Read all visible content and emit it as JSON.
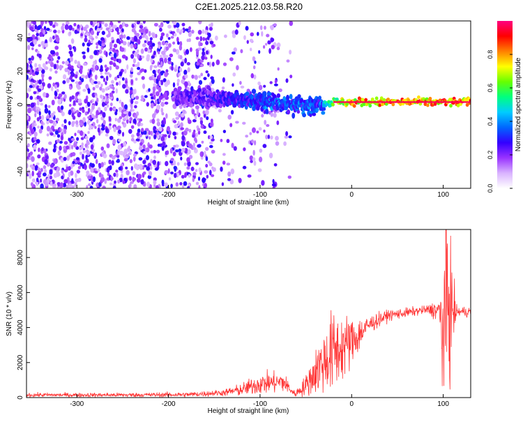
{
  "page": {
    "title": "C2E1.2025.212.03.58.R20"
  },
  "chart_data": [
    {
      "type": "heatmap",
      "xlabel": "Height of straight line (km)",
      "ylabel": "Frequency (Hz)",
      "xlim": [
        -355,
        130
      ],
      "ylim": [
        -50,
        50
      ],
      "xticks": [
        -300,
        -200,
        -100,
        0,
        100
      ],
      "yticks": [
        -40,
        -20,
        0,
        20,
        40
      ],
      "grid": false,
      "legend": "none",
      "colorbar": {
        "label": "Normalized spectral amplitude",
        "range": [
          0,
          1
        ],
        "ticks": [
          0.0,
          0.2,
          0.4,
          0.6,
          0.8
        ],
        "tick_labels": [
          "0.0",
          "0.2",
          "0.4",
          "0.6",
          "0.8"
        ],
        "colormap": [
          "#ffffff",
          "#d9b3ff",
          "#9933ff",
          "#3300ff",
          "#0066ff",
          "#00ccff",
          "#00ff80",
          "#66ff00",
          "#ffff00",
          "#ff8000",
          "#ff0000",
          "#ff0080"
        ]
      },
      "signal_trace": [
        {
          "x": -190,
          "f": 4.5,
          "amp": 0.3
        },
        {
          "x": -150,
          "f": 4.0,
          "amp": 0.35
        },
        {
          "x": -120,
          "f": 3.0,
          "amp": 0.4
        },
        {
          "x": -90,
          "f": 2.0,
          "amp": 0.45
        },
        {
          "x": -70,
          "f": 0.5,
          "amp": 0.45
        },
        {
          "x": -50,
          "f": -1.0,
          "amp": 0.45
        },
        {
          "x": -35,
          "f": 0.5,
          "amp": 0.45
        },
        {
          "x": -20,
          "f": 1.5,
          "amp": 0.7
        },
        {
          "x": 0,
          "f": 1.5,
          "amp": 0.9
        },
        {
          "x": 50,
          "f": 1.5,
          "amp": 0.95
        },
        {
          "x": 100,
          "f": 1.5,
          "amp": 0.95
        },
        {
          "x": 130,
          "f": 1.5,
          "amp": 0.95
        }
      ]
    },
    {
      "type": "line",
      "xlabel": "Height of straight line (km)",
      "ylabel": "SNR (10 * v/v)",
      "xlim": [
        -355,
        130
      ],
      "ylim": [
        0,
        9600
      ],
      "xticks": [
        -300,
        -200,
        -100,
        0,
        100
      ],
      "yticks": [
        0,
        2000,
        4000,
        6000,
        8000
      ],
      "grid": false,
      "legend": "none",
      "color": "#ff3333",
      "envelope": [
        {
          "x": -355,
          "y": 150,
          "noise": 60
        },
        {
          "x": -250,
          "y": 150,
          "noise": 60
        },
        {
          "x": -180,
          "y": 170,
          "noise": 70
        },
        {
          "x": -140,
          "y": 280,
          "noise": 90
        },
        {
          "x": -120,
          "y": 450,
          "noise": 180
        },
        {
          "x": -100,
          "y": 800,
          "noise": 300
        },
        {
          "x": -75,
          "y": 900,
          "noise": 300
        },
        {
          "x": -62,
          "y": 200,
          "noise": 80
        },
        {
          "x": -50,
          "y": 700,
          "noise": 300
        },
        {
          "x": -35,
          "y": 1800,
          "noise": 800
        },
        {
          "x": -20,
          "y": 2600,
          "noise": 1200
        },
        {
          "x": 0,
          "y": 3200,
          "noise": 700
        },
        {
          "x": 20,
          "y": 4200,
          "noise": 250
        },
        {
          "x": 40,
          "y": 4700,
          "noise": 150
        },
        {
          "x": 80,
          "y": 5000,
          "noise": 120
        },
        {
          "x": 95,
          "y": 5000,
          "noise": 300
        },
        {
          "x": 100,
          "y": 3500,
          "noise": 2500
        },
        {
          "x": 104,
          "y": 5500,
          "noise": 3500
        },
        {
          "x": 110,
          "y": 5000,
          "noise": 1000
        },
        {
          "x": 115,
          "y": 4900,
          "noise": 150
        },
        {
          "x": 130,
          "y": 4900,
          "noise": 150
        }
      ]
    }
  ]
}
